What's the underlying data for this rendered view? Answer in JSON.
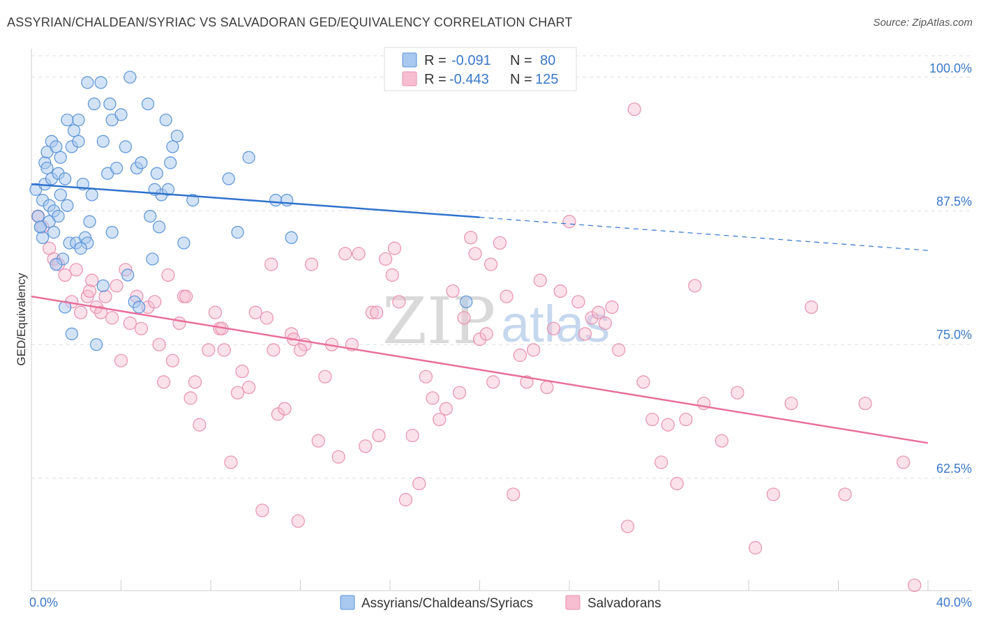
{
  "title": "ASSYRIAN/CHALDEAN/SYRIAC VS SALVADORAN GED/EQUIVALENCY CORRELATION CHART",
  "source": "Source: ZipAtlas.com",
  "watermark": {
    "part1": "ZIP",
    "part2": "atlas"
  },
  "colors": {
    "blue_fill": "#a8c8ef",
    "blue_stroke": "#5b93d8",
    "blue_line": "#2f73cc",
    "pink_fill": "#f7bdd0",
    "pink_stroke": "#e890b0",
    "pink_line": "#e8709a",
    "axis_label": "#3a78c9",
    "grid": "#dddddd"
  },
  "legend": {
    "rows": [
      {
        "r_label": "R =",
        "r_value": "-0.091",
        "n_label": "N =",
        "n_value": "80"
      },
      {
        "r_label": "R =",
        "r_value": "-0.443",
        "n_label": "N =",
        "n_value": "125"
      }
    ]
  },
  "bottom_legend": [
    "Assyrians/Chaldeans/Syriacs",
    "Salvadorans"
  ],
  "chart_data": {
    "type": "scatter",
    "xlabel": "",
    "ylabel": "GED/Equivalency",
    "xlim": [
      0,
      40
    ],
    "ylim": [
      52,
      102
    ],
    "x_tick_labels": [
      "0.0%",
      "40.0%"
    ],
    "y_ticks": [
      62.5,
      75.0,
      87.5,
      100.0
    ],
    "y_tick_labels": [
      "62.5%",
      "75.0%",
      "87.5%",
      "100.0%"
    ],
    "grid": true,
    "series": [
      {
        "name": "Assyrians/Chaldeans/Syriacs",
        "points": [
          [
            0.2,
            89.5
          ],
          [
            0.3,
            87.0
          ],
          [
            0.4,
            86.0
          ],
          [
            0.5,
            85.0
          ],
          [
            0.5,
            88.5
          ],
          [
            0.6,
            90.0
          ],
          [
            0.6,
            92.0
          ],
          [
            0.7,
            93.0
          ],
          [
            0.7,
            91.5
          ],
          [
            0.8,
            88.0
          ],
          [
            0.8,
            86.5
          ],
          [
            0.9,
            94.0
          ],
          [
            0.9,
            90.5
          ],
          [
            1.0,
            87.5
          ],
          [
            1.0,
            85.5
          ],
          [
            1.1,
            93.5
          ],
          [
            1.2,
            91.0
          ],
          [
            1.2,
            87.0
          ],
          [
            1.3,
            92.5
          ],
          [
            1.3,
            89.0
          ],
          [
            1.4,
            83.0
          ],
          [
            1.5,
            90.5
          ],
          [
            1.5,
            78.5
          ],
          [
            1.6,
            96.0
          ],
          [
            1.6,
            88.0
          ],
          [
            1.7,
            84.5
          ],
          [
            1.8,
            93.5
          ],
          [
            1.8,
            76.0
          ],
          [
            1.9,
            95.0
          ],
          [
            2.0,
            84.5
          ],
          [
            2.1,
            96.0
          ],
          [
            2.1,
            94.0
          ],
          [
            2.3,
            90.0
          ],
          [
            2.4,
            85.0
          ],
          [
            2.5,
            84.5
          ],
          [
            2.5,
            99.5
          ],
          [
            2.6,
            86.5
          ],
          [
            2.7,
            89.0
          ],
          [
            2.8,
            97.5
          ],
          [
            2.9,
            75.0
          ],
          [
            3.1,
            99.5
          ],
          [
            3.2,
            94.0
          ],
          [
            3.2,
            80.5
          ],
          [
            3.4,
            91.0
          ],
          [
            3.5,
            97.5
          ],
          [
            3.6,
            96.0
          ],
          [
            3.8,
            91.5
          ],
          [
            4.0,
            96.5
          ],
          [
            4.2,
            93.5
          ],
          [
            4.3,
            81.5
          ],
          [
            4.4,
            100.0
          ],
          [
            4.6,
            79.0
          ],
          [
            4.7,
            91.5
          ],
          [
            4.9,
            92.0
          ],
          [
            5.2,
            97.5
          ],
          [
            5.3,
            87.0
          ],
          [
            5.4,
            83.0
          ],
          [
            5.6,
            91.0
          ],
          [
            5.7,
            86.0
          ],
          [
            5.8,
            89.0
          ],
          [
            6.0,
            96.0
          ],
          [
            6.1,
            89.5
          ],
          [
            6.2,
            92.0
          ],
          [
            6.3,
            93.5
          ],
          [
            6.5,
            94.5
          ],
          [
            6.8,
            84.5
          ],
          [
            7.2,
            88.5
          ],
          [
            8.8,
            90.5
          ],
          [
            9.2,
            85.5
          ],
          [
            9.7,
            92.5
          ],
          [
            10.9,
            88.5
          ],
          [
            11.4,
            88.5
          ],
          [
            11.6,
            85.0
          ],
          [
            19.4,
            79.0
          ],
          [
            3.6,
            85.5
          ],
          [
            1.1,
            82.5
          ],
          [
            2.2,
            84.0
          ],
          [
            4.8,
            78.5
          ],
          [
            5.5,
            89.5
          ],
          [
            0.4,
            86.0
          ]
        ]
      },
      {
        "name": "Salvadorans",
        "points": [
          [
            0.3,
            87.0
          ],
          [
            0.5,
            86.0
          ],
          [
            0.8,
            84.0
          ],
          [
            1.0,
            83.0
          ],
          [
            1.2,
            82.5
          ],
          [
            1.5,
            81.5
          ],
          [
            1.8,
            79.0
          ],
          [
            2.0,
            82.0
          ],
          [
            2.2,
            78.0
          ],
          [
            2.5,
            79.5
          ],
          [
            2.7,
            81.0
          ],
          [
            2.9,
            78.5
          ],
          [
            3.1,
            78.0
          ],
          [
            3.3,
            79.5
          ],
          [
            3.6,
            77.5
          ],
          [
            3.8,
            80.5
          ],
          [
            4.0,
            73.5
          ],
          [
            4.2,
            82.0
          ],
          [
            4.4,
            77.0
          ],
          [
            4.7,
            79.5
          ],
          [
            4.9,
            76.5
          ],
          [
            5.2,
            78.5
          ],
          [
            5.5,
            79.0
          ],
          [
            5.7,
            75.0
          ],
          [
            5.9,
            71.5
          ],
          [
            6.1,
            81.5
          ],
          [
            6.3,
            73.5
          ],
          [
            6.6,
            77.0
          ],
          [
            6.8,
            79.5
          ],
          [
            7.1,
            70.0
          ],
          [
            7.3,
            71.5
          ],
          [
            7.5,
            67.5
          ],
          [
            7.9,
            74.5
          ],
          [
            8.2,
            78.0
          ],
          [
            8.4,
            76.5
          ],
          [
            8.6,
            74.5
          ],
          [
            8.9,
            64.0
          ],
          [
            9.2,
            70.5
          ],
          [
            9.4,
            72.5
          ],
          [
            9.7,
            71.0
          ],
          [
            10.0,
            78.0
          ],
          [
            10.3,
            59.5
          ],
          [
            10.5,
            77.5
          ],
          [
            10.8,
            74.5
          ],
          [
            11.0,
            68.5
          ],
          [
            11.3,
            69.0
          ],
          [
            11.6,
            76.0
          ],
          [
            11.9,
            58.5
          ],
          [
            12.2,
            75.0
          ],
          [
            12.5,
            82.5
          ],
          [
            12.8,
            66.0
          ],
          [
            13.1,
            72.0
          ],
          [
            13.4,
            75.0
          ],
          [
            13.7,
            64.5
          ],
          [
            14.0,
            83.5
          ],
          [
            14.3,
            75.0
          ],
          [
            14.6,
            83.5
          ],
          [
            14.9,
            65.5
          ],
          [
            15.2,
            78.0
          ],
          [
            15.5,
            66.5
          ],
          [
            15.8,
            83.0
          ],
          [
            16.1,
            81.5
          ],
          [
            16.4,
            79.0
          ],
          [
            16.7,
            60.5
          ],
          [
            17.0,
            66.5
          ],
          [
            17.3,
            62.0
          ],
          [
            17.6,
            72.0
          ],
          [
            17.9,
            70.0
          ],
          [
            18.2,
            68.0
          ],
          [
            18.5,
            69.0
          ],
          [
            18.8,
            80.0
          ],
          [
            19.1,
            70.5
          ],
          [
            19.3,
            77.5
          ],
          [
            19.6,
            85.0
          ],
          [
            19.8,
            83.5
          ],
          [
            20.0,
            75.5
          ],
          [
            20.3,
            76.0
          ],
          [
            20.6,
            71.5
          ],
          [
            20.9,
            84.5
          ],
          [
            21.2,
            79.5
          ],
          [
            21.5,
            61.0
          ],
          [
            21.8,
            74.0
          ],
          [
            22.1,
            71.5
          ],
          [
            22.4,
            74.5
          ],
          [
            22.7,
            81.0
          ],
          [
            23.0,
            71.0
          ],
          [
            23.3,
            76.5
          ],
          [
            23.6,
            80.0
          ],
          [
            24.0,
            86.5
          ],
          [
            24.4,
            79.0
          ],
          [
            24.7,
            76.0
          ],
          [
            25.0,
            77.5
          ],
          [
            25.3,
            78.0
          ],
          [
            25.6,
            77.0
          ],
          [
            25.9,
            78.5
          ],
          [
            26.2,
            74.5
          ],
          [
            26.6,
            58.0
          ],
          [
            26.9,
            97.0
          ],
          [
            27.3,
            71.5
          ],
          [
            27.7,
            68.0
          ],
          [
            28.1,
            64.0
          ],
          [
            28.4,
            67.5
          ],
          [
            28.8,
            62.0
          ],
          [
            29.2,
            68.0
          ],
          [
            29.6,
            80.5
          ],
          [
            30.0,
            69.5
          ],
          [
            30.8,
            66.0
          ],
          [
            31.5,
            70.5
          ],
          [
            32.3,
            56.0
          ],
          [
            33.1,
            61.0
          ],
          [
            33.9,
            69.5
          ],
          [
            34.8,
            78.5
          ],
          [
            36.3,
            61.0
          ],
          [
            37.2,
            69.5
          ],
          [
            39.4,
            52.5
          ],
          [
            38.9,
            64.0
          ],
          [
            2.6,
            80.0
          ],
          [
            6.9,
            79.5
          ],
          [
            11.7,
            75.5
          ],
          [
            16.2,
            84.0
          ],
          [
            8.5,
            76.5
          ],
          [
            12.0,
            74.5
          ],
          [
            15.4,
            78.0
          ],
          [
            20.5,
            82.5
          ],
          [
            10.7,
            82.5
          ]
        ]
      }
    ],
    "trendlines": [
      {
        "series": "Assyrians/Chaldeans/Syriacs",
        "start": [
          0,
          90.0
        ],
        "solid_end": [
          20,
          86.9
        ],
        "dashed_end": [
          40,
          83.8
        ]
      },
      {
        "series": "Salvadorans",
        "start": [
          0,
          79.5
        ],
        "end": [
          40,
          65.8
        ]
      }
    ]
  }
}
